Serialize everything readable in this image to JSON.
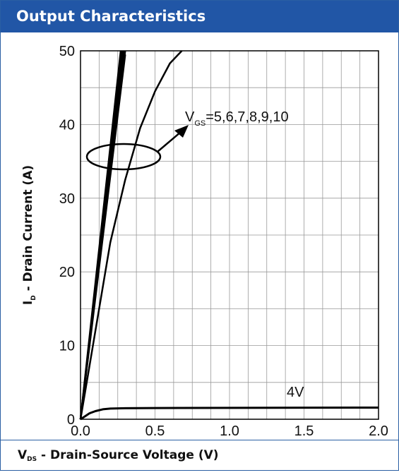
{
  "header": {
    "title": "Output Characteristics"
  },
  "footer": {
    "xlabel_main": "V",
    "xlabel_sub": "DS",
    "xlabel_rest": " - Drain-Source Voltage (V)"
  },
  "colors": {
    "header_bg": "#2156a6",
    "border": "#2a5fa3",
    "curve": "#000000",
    "grid": "#999999"
  },
  "chart_data": {
    "type": "line",
    "title": "Output Characteristics",
    "xlabel": "VDS - Drain-Source Voltage (V)",
    "ylabel": "ID - Drain Current (A)",
    "xlim": [
      0,
      2.0
    ],
    "ylim": [
      0,
      50
    ],
    "xticks": [
      "0.0",
      "0.5",
      "1.0",
      "1.5",
      "2.0"
    ],
    "yticks": [
      "0",
      "10",
      "20",
      "30",
      "40",
      "50"
    ],
    "grid": true,
    "annotations": [
      {
        "text_main": "V",
        "text_sub": "GS",
        "text_rest": "=5,6,7,8,9,10"
      },
      {
        "text": "4V"
      }
    ],
    "series": [
      {
        "x": [
          0,
          0.1,
          0.2,
          0.25,
          0.3
        ],
        "y": [
          0,
          16.5,
          33,
          41.3,
          49.5
        ]
      },
      {
        "x": [
          0,
          0.1,
          0.2,
          0.25,
          0.3
        ],
        "y": [
          0,
          16.8,
          33.5,
          41.9,
          50
        ]
      },
      {
        "x": [
          0,
          0.1,
          0.2,
          0.25,
          0.29
        ],
        "y": [
          0,
          17.2,
          34.5,
          43,
          50
        ]
      },
      {
        "x": [
          0,
          0.1,
          0.2,
          0.25,
          0.28
        ],
        "y": [
          0,
          17.8,
          35.7,
          44.6,
          50
        ]
      },
      {
        "x": [
          0,
          0.1,
          0.2,
          0.25,
          0.27
        ],
        "y": [
          0,
          18.5,
          37,
          46.3,
          50
        ]
      },
      {
        "x": [
          0,
          0.1,
          0.2,
          0.3,
          0.4,
          0.5,
          0.6,
          0.68
        ],
        "y": [
          0,
          12,
          24,
          32.5,
          39.5,
          44.5,
          48.3,
          50
        ]
      },
      {
        "x": [
          0,
          0.03,
          0.06,
          0.1,
          0.15,
          0.2,
          0.3,
          0.5,
          1.0,
          1.5,
          2.0
        ],
        "y": [
          0,
          0.4,
          0.8,
          1.1,
          1.35,
          1.45,
          1.5,
          1.52,
          1.55,
          1.57,
          1.58
        ]
      }
    ]
  }
}
